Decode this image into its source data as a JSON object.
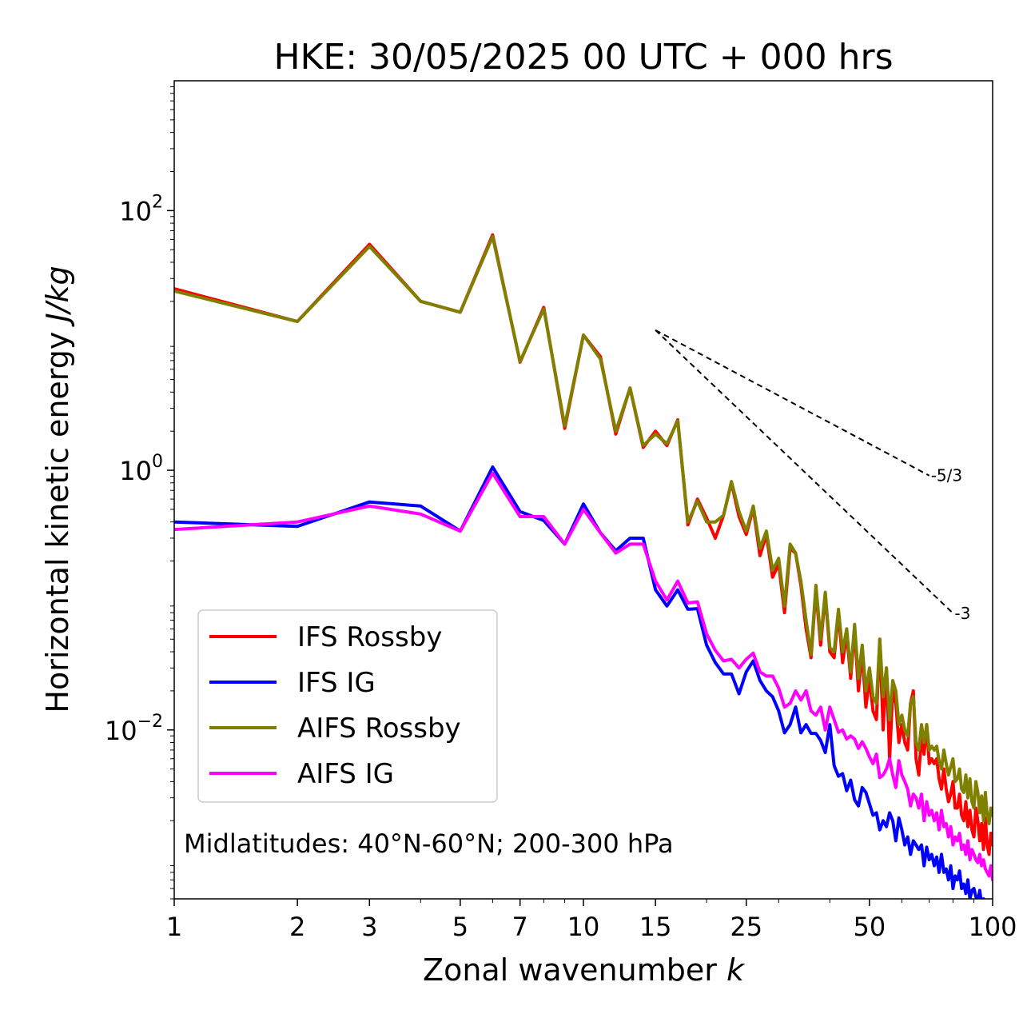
{
  "chart_data": {
    "type": "line",
    "title": "HKE: 30/05/2025 00 UTC + 000 hrs",
    "xlabel": "Zonal wavenumber",
    "xlabel_symbol": "k",
    "ylabel": "Horizontal kinetic energy",
    "ylabel_units": "J/kg",
    "xscale": "log",
    "yscale": "log",
    "xlim": [
      1,
      100
    ],
    "ylim": [
      0.0005,
      1000
    ],
    "x_ticks": [
      {
        "value": 1,
        "label": "1"
      },
      {
        "value": 2,
        "label": "2"
      },
      {
        "value": 3,
        "label": "3"
      },
      {
        "value": 5,
        "label": "5"
      },
      {
        "value": 7,
        "label": "7"
      },
      {
        "value": 10,
        "label": "10"
      },
      {
        "value": 15,
        "label": "15"
      },
      {
        "value": 25,
        "label": "25"
      },
      {
        "value": 50,
        "label": "50"
      },
      {
        "value": 100,
        "label": "100"
      }
    ],
    "y_ticks": [
      {
        "value": 100,
        "base": "10",
        "exp": "2"
      },
      {
        "value": 1,
        "base": "10",
        "exp": "0"
      },
      {
        "value": 0.01,
        "base": "10",
        "exp": "−2"
      }
    ],
    "grid": false,
    "legend_position": "lower-left",
    "annotation": "Midlatitudes: 40°N-60°N; 200-300 hPa",
    "reference_slopes": [
      {
        "label": "-5/3",
        "x": [
          15,
          70
        ],
        "y": [
          12,
          0.91
        ]
      },
      {
        "label": "-3",
        "x": [
          15,
          80
        ],
        "y": [
          12,
          0.0793
        ]
      }
    ],
    "series": [
      {
        "name": "IFS Rossby",
        "color": "#ff0000",
        "x": [
          1,
          2,
          3,
          4,
          5,
          6,
          7,
          8,
          9,
          10,
          11,
          12,
          13,
          14,
          15,
          16,
          17,
          18,
          19,
          20,
          21,
          22,
          23,
          24,
          25,
          26,
          27,
          28,
          29,
          30,
          31,
          32,
          33,
          34,
          35,
          36,
          37,
          38,
          39,
          40,
          41,
          42,
          43,
          44,
          45,
          46,
          47,
          48,
          49,
          50,
          51,
          52,
          53,
          54,
          55,
          56,
          57,
          58,
          59,
          60,
          61,
          62,
          63,
          64,
          65,
          66,
          67,
          68,
          69,
          70,
          71,
          72,
          73,
          74,
          75,
          76,
          77,
          78,
          79,
          80,
          81,
          82,
          83,
          84,
          85,
          86,
          87,
          88,
          89,
          90,
          91,
          92,
          93,
          94,
          95,
          96,
          97,
          98,
          99,
          100
        ],
        "y": [
          25,
          14,
          55,
          20,
          16.5,
          65,
          6.8,
          18,
          2.1,
          11,
          7.5,
          1.9,
          4.3,
          1.5,
          2.0,
          1.55,
          2.45,
          0.38,
          0.6,
          0.43,
          0.3,
          0.45,
          0.8,
          0.44,
          0.32,
          0.51,
          0.22,
          0.32,
          0.15,
          0.19,
          0.08,
          0.25,
          0.23,
          0.13,
          0.06,
          0.036,
          0.12,
          0.045,
          0.11,
          0.04,
          0.036,
          0.08,
          0.033,
          0.055,
          0.025,
          0.06,
          0.02,
          0.04,
          0.015,
          0.025,
          0.014,
          0.012,
          0.05,
          0.01,
          0.03,
          0.006,
          0.02,
          0.016,
          0.008,
          0.011,
          0.008,
          0.007,
          0.016,
          0.02,
          0.006,
          0.0045,
          0.009,
          0.0065,
          0.011,
          0.0055,
          0.006,
          0.0055,
          0.006,
          0.0042,
          0.0035,
          0.005,
          0.0035,
          0.0028,
          0.0032,
          0.004,
          0.0025,
          0.0025,
          0.0032,
          0.0022,
          0.002,
          0.0028,
          0.0018,
          0.0024,
          0.0017,
          0.0015,
          0.0025,
          0.002,
          0.0014,
          0.0019,
          0.0012,
          0.0021,
          0.0013,
          0.0011,
          0.0016,
          0.0013
        ]
      },
      {
        "name": "IFS IG",
        "color": "#0000ff",
        "x": [
          1,
          2,
          3,
          4,
          5,
          6,
          7,
          8,
          9,
          10,
          11,
          12,
          13,
          14,
          15,
          16,
          17,
          18,
          19,
          20,
          21,
          22,
          23,
          24,
          25,
          26,
          27,
          28,
          29,
          30,
          31,
          32,
          33,
          34,
          35,
          36,
          37,
          38,
          39,
          40,
          41,
          42,
          43,
          44,
          45,
          46,
          47,
          48,
          49,
          50,
          51,
          52,
          53,
          54,
          55,
          56,
          57,
          58,
          59,
          60,
          61,
          62,
          63,
          64,
          65,
          66,
          67,
          68,
          69,
          70,
          71,
          72,
          73,
          74,
          75,
          76,
          77,
          78,
          79,
          80,
          81,
          82,
          83,
          84,
          85,
          86,
          87,
          88,
          89,
          90,
          91,
          92,
          93,
          94,
          95,
          96,
          97,
          98,
          99,
          100
        ],
        "y": [
          0.4,
          0.37,
          0.57,
          0.53,
          0.34,
          1.06,
          0.48,
          0.41,
          0.27,
          0.55,
          0.33,
          0.24,
          0.3,
          0.3,
          0.12,
          0.09,
          0.12,
          0.085,
          0.086,
          0.045,
          0.033,
          0.027,
          0.027,
          0.019,
          0.028,
          0.034,
          0.024,
          0.02,
          0.018,
          0.014,
          0.0095,
          0.011,
          0.015,
          0.0095,
          0.011,
          0.0094,
          0.0094,
          0.0083,
          0.0067,
          0.011,
          0.0053,
          0.0044,
          0.0046,
          0.0034,
          0.0041,
          0.0029,
          0.0026,
          0.0036,
          0.0033,
          0.0027,
          0.0022,
          0.0023,
          0.0017,
          0.002,
          0.0018,
          0.0023,
          0.002,
          0.0014,
          0.0021,
          0.0017,
          0.0013,
          0.0015,
          0.0011,
          0.0014,
          0.0013,
          0.0012,
          0.0013,
          0.0009,
          0.00125,
          0.001,
          0.0011,
          0.0009,
          0.00105,
          0.0008,
          0.0011,
          0.0008,
          0.00085,
          0.0007,
          0.0009,
          0.0006,
          0.00075,
          0.0007,
          0.00082,
          0.0006,
          0.00065,
          0.00055,
          0.0007,
          0.0005,
          0.00058,
          0.0006,
          0.00052,
          0.00048,
          0.00058,
          0.00045,
          0.0005,
          0.00044,
          0.00041,
          0.00039,
          0.00042,
          0.00036
        ]
      },
      {
        "name": "AIFS Rossby",
        "color": "#808000",
        "x": [
          1,
          2,
          3,
          4,
          5,
          6,
          7,
          8,
          9,
          10,
          11,
          12,
          13,
          14,
          15,
          16,
          17,
          18,
          19,
          20,
          21,
          22,
          23,
          24,
          25,
          26,
          27,
          28,
          29,
          30,
          31,
          32,
          33,
          34,
          35,
          36,
          37,
          38,
          39,
          40,
          41,
          42,
          43,
          44,
          45,
          46,
          47,
          48,
          49,
          50,
          51,
          52,
          53,
          54,
          55,
          56,
          57,
          58,
          59,
          60,
          61,
          62,
          63,
          64,
          65,
          66,
          67,
          68,
          69,
          70,
          71,
          72,
          73,
          74,
          75,
          76,
          77,
          78,
          79,
          80,
          81,
          82,
          83,
          84,
          85,
          86,
          87,
          88,
          89,
          90,
          91,
          92,
          93,
          94,
          95,
          96,
          97,
          98,
          99,
          100
        ],
        "y": [
          24,
          14,
          53,
          20,
          16.5,
          63,
          6.9,
          17.5,
          2.2,
          11,
          7.2,
          2.0,
          4.3,
          1.55,
          1.9,
          1.6,
          2.4,
          0.4,
          0.58,
          0.4,
          0.4,
          0.45,
          0.82,
          0.48,
          0.34,
          0.53,
          0.25,
          0.34,
          0.17,
          0.21,
          0.09,
          0.27,
          0.23,
          0.14,
          0.07,
          0.038,
          0.13,
          0.05,
          0.115,
          0.043,
          0.04,
          0.085,
          0.04,
          0.06,
          0.028,
          0.065,
          0.025,
          0.045,
          0.02,
          0.03,
          0.018,
          0.016,
          0.05,
          0.018,
          0.03,
          0.012,
          0.024,
          0.02,
          0.011,
          0.013,
          0.01,
          0.009,
          0.016,
          0.018,
          0.008,
          0.007,
          0.011,
          0.008,
          0.011,
          0.007,
          0.0075,
          0.007,
          0.0075,
          0.0058,
          0.005,
          0.007,
          0.0055,
          0.0045,
          0.0052,
          0.006,
          0.004,
          0.0042,
          0.005,
          0.0035,
          0.0033,
          0.0045,
          0.003,
          0.0042,
          0.0028,
          0.0025,
          0.004,
          0.0033,
          0.0023,
          0.0031,
          0.002,
          0.0033,
          0.0022,
          0.0019,
          0.0025,
          0.0022
        ]
      },
      {
        "name": "AIFS IG",
        "color": "#ff00ff",
        "x": [
          1,
          2,
          3,
          4,
          5,
          6,
          7,
          8,
          9,
          10,
          11,
          12,
          13,
          14,
          15,
          16,
          17,
          18,
          19,
          20,
          21,
          22,
          23,
          24,
          25,
          26,
          27,
          28,
          29,
          30,
          31,
          32,
          33,
          34,
          35,
          36,
          37,
          38,
          39,
          40,
          41,
          42,
          43,
          44,
          45,
          46,
          47,
          48,
          49,
          50,
          51,
          52,
          53,
          54,
          55,
          56,
          57,
          58,
          59,
          60,
          61,
          62,
          63,
          64,
          65,
          66,
          67,
          68,
          69,
          70,
          71,
          72,
          73,
          74,
          75,
          76,
          77,
          78,
          79,
          80,
          81,
          82,
          83,
          84,
          85,
          86,
          87,
          88,
          89,
          90,
          91,
          92,
          93,
          94,
          95,
          96,
          97,
          98,
          99,
          100
        ],
        "y": [
          0.35,
          0.4,
          0.53,
          0.46,
          0.34,
          0.95,
          0.44,
          0.44,
          0.27,
          0.5,
          0.33,
          0.23,
          0.27,
          0.27,
          0.14,
          0.1,
          0.14,
          0.095,
          0.097,
          0.055,
          0.041,
          0.034,
          0.035,
          0.03,
          0.035,
          0.039,
          0.028,
          0.026,
          0.026,
          0.021,
          0.015,
          0.016,
          0.02,
          0.017,
          0.02,
          0.014,
          0.013,
          0.015,
          0.01,
          0.015,
          0.012,
          0.0096,
          0.01,
          0.0085,
          0.009,
          0.0085,
          0.0072,
          0.0081,
          0.0072,
          0.0062,
          0.0055,
          0.0065,
          0.0043,
          0.0045,
          0.005,
          0.006,
          0.0045,
          0.0036,
          0.0058,
          0.0045,
          0.004,
          0.0035,
          0.0026,
          0.0032,
          0.003,
          0.0025,
          0.0032,
          0.002,
          0.0028,
          0.0022,
          0.0024,
          0.002,
          0.0023,
          0.0017,
          0.0024,
          0.0018,
          0.0019,
          0.0015,
          0.0018,
          0.0013,
          0.0015,
          0.0014,
          0.0016,
          0.0012,
          0.0013,
          0.0011,
          0.0014,
          0.001,
          0.0012,
          0.0011,
          0.001,
          0.00095,
          0.0011,
          0.0009,
          0.001,
          0.00085,
          0.0008,
          0.00075,
          0.0009,
          0.0007
        ]
      }
    ]
  }
}
